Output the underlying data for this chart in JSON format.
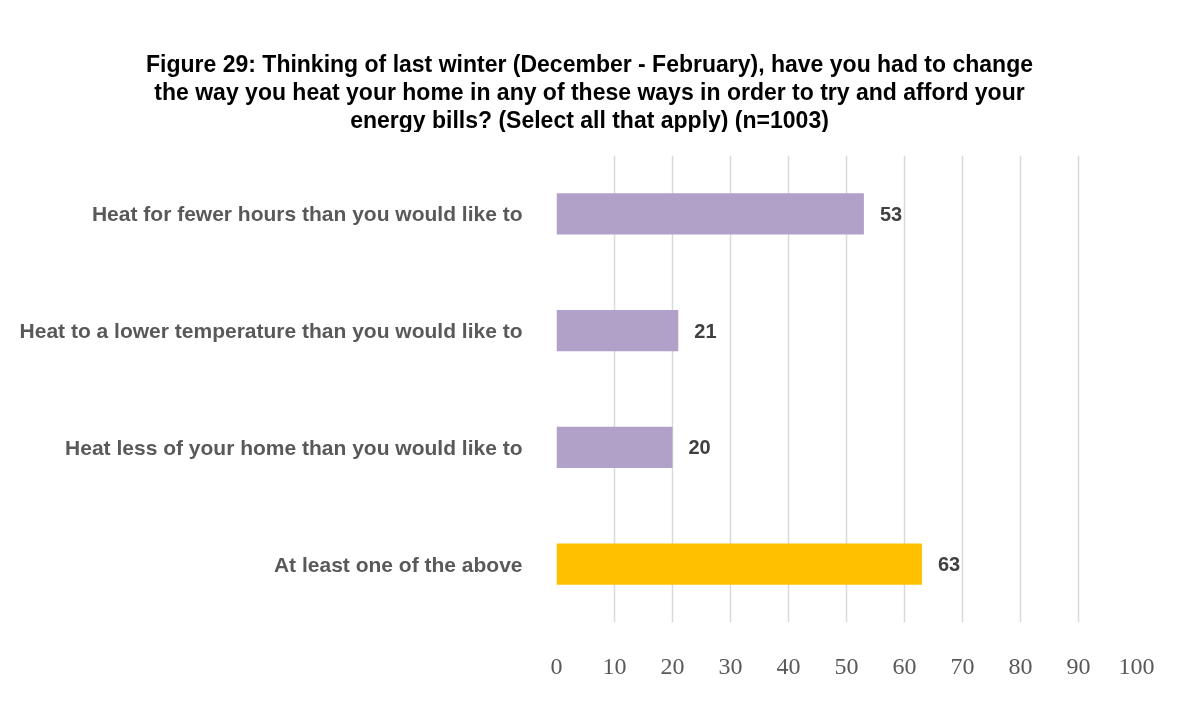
{
  "chart_data": {
    "type": "bar",
    "orientation": "horizontal",
    "title": "Figure 29: Thinking of last winter (December - February), have you had to change the way you heat your home in any of these ways in order to try and afford your energy bills? (Select all that apply) (n=1003)",
    "categories": [
      "Heat for fewer hours than you would like to",
      "Heat to a lower temperature than you would like to",
      "Heat less of your home than you would like to",
      "At least one of the above"
    ],
    "values": [
      53,
      21,
      20,
      63
    ],
    "colors": [
      "#b1a0c7",
      "#b1a0c7",
      "#b1a0c7",
      "#ffc000"
    ],
    "xlim": [
      0,
      100
    ],
    "xticks": [
      0,
      10,
      20,
      30,
      40,
      50,
      60,
      70,
      80,
      90,
      100
    ],
    "grid": "x",
    "data_labels": true
  }
}
